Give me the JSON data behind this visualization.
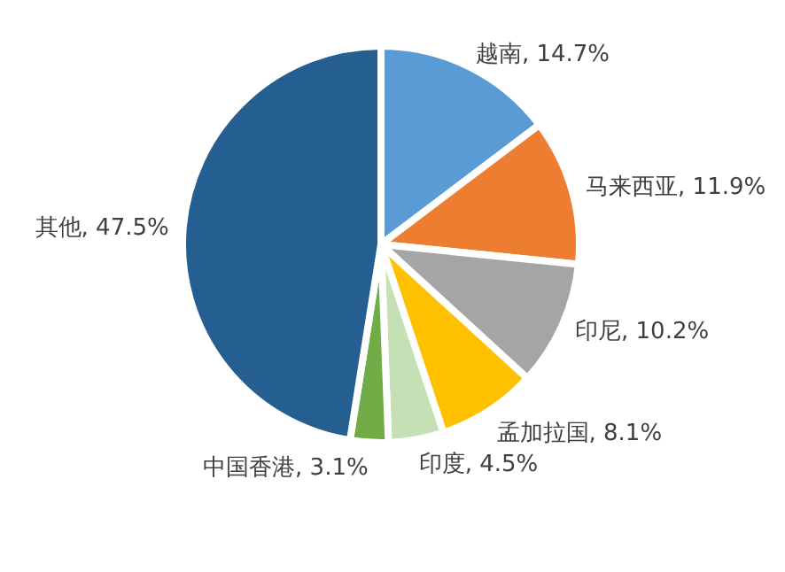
{
  "chart_data": {
    "type": "pie",
    "categories": [
      "越南",
      "马来西亚",
      "印尼",
      "孟加拉国",
      "印度",
      "中国香港",
      "其他"
    ],
    "values": [
      14.7,
      11.9,
      10.2,
      8.1,
      4.5,
      3.1,
      47.5
    ],
    "colors": [
      "#5b9bd5",
      "#ed7d31",
      "#a5a5a5",
      "#ffc000",
      "#c5e0b4",
      "#70ad47",
      "#255e91"
    ],
    "value_labels": [
      "14.7%",
      "11.9%",
      "10.2%",
      "8.1%",
      "4.5%",
      "3.1%",
      "47.5%"
    ],
    "legend": false
  }
}
